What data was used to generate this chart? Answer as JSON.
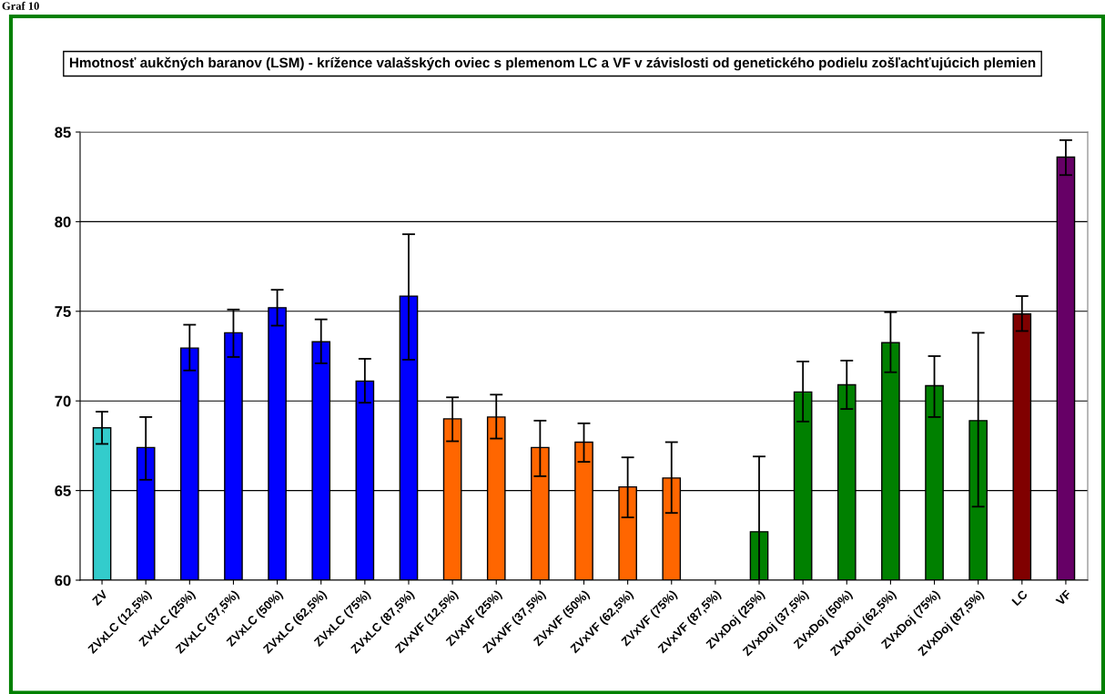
{
  "chart_data": {
    "type": "bar",
    "title": "Hmotnosť aukčných baranov (LSM) - krížence valašských oviec s plemenom LC a VF v závislosti od genetického podielu zošľachťujúcich plemien",
    "annotations": [
      "Graf 10"
    ],
    "categories": [
      "ZV",
      "ZVxLC (12,5%)",
      "ZVxLC (25%)",
      "ZVxLC (37,5%)",
      "ZVxLC (50%)",
      "ZVxLC (62,5%)",
      "ZVxLC (75%)",
      "ZVxLC (87,5%)",
      "ZVxVF (12,5%)",
      "ZVxVF (25%)",
      "ZVxVF (37,5%)",
      "ZVxVF (50%)",
      "ZVxVF (62,5%)",
      "ZVxVF (75%)",
      "ZVxVF (87,5%)",
      "ZVxDoj (25%)",
      "ZVxDoj (37,5%)",
      "ZVxDoj (50%)",
      "ZVxDoj (62,5%)",
      "ZVxDoj (75%)",
      "ZVxDoj (87,5%)",
      "LC",
      "VF"
    ],
    "values": [
      68.5,
      67.4,
      72.95,
      73.8,
      75.2,
      73.3,
      71.1,
      75.85,
      69.0,
      69.1,
      67.4,
      67.7,
      65.2,
      65.7,
      null,
      62.7,
      70.5,
      70.9,
      73.25,
      70.85,
      68.9,
      74.85,
      83.6
    ],
    "errors": [
      [
        67.6,
        69.4
      ],
      [
        65.6,
        69.1
      ],
      [
        71.7,
        74.25
      ],
      [
        72.45,
        75.1
      ],
      [
        74.2,
        76.2
      ],
      [
        72.1,
        74.55
      ],
      [
        69.9,
        72.35
      ],
      [
        72.3,
        79.3
      ],
      [
        67.75,
        70.2
      ],
      [
        67.9,
        70.35
      ],
      [
        65.8,
        68.9
      ],
      [
        66.6,
        68.75
      ],
      [
        63.5,
        66.85
      ],
      [
        63.75,
        67.7
      ],
      null,
      [
        60.0,
        66.9
      ],
      [
        68.85,
        72.2
      ],
      [
        69.55,
        72.25
      ],
      [
        71.6,
        74.95
      ],
      [
        69.1,
        72.5
      ],
      [
        64.1,
        73.8
      ],
      [
        73.9,
        75.85
      ],
      [
        82.6,
        84.55
      ]
    ],
    "colors": [
      "#33cccc",
      "#0000ff",
      "#0000ff",
      "#0000ff",
      "#0000ff",
      "#0000ff",
      "#0000ff",
      "#0000ff",
      "#ff6600",
      "#ff6600",
      "#ff6600",
      "#ff6600",
      "#ff6600",
      "#ff6600",
      "#ff6600",
      "#008000",
      "#008000",
      "#008000",
      "#008000",
      "#008000",
      "#008000",
      "#800000",
      "#660066"
    ],
    "ylim": [
      60,
      85
    ],
    "yticks": [
      60,
      65,
      70,
      75,
      80,
      85
    ],
    "grid": "y",
    "legend": false
  }
}
